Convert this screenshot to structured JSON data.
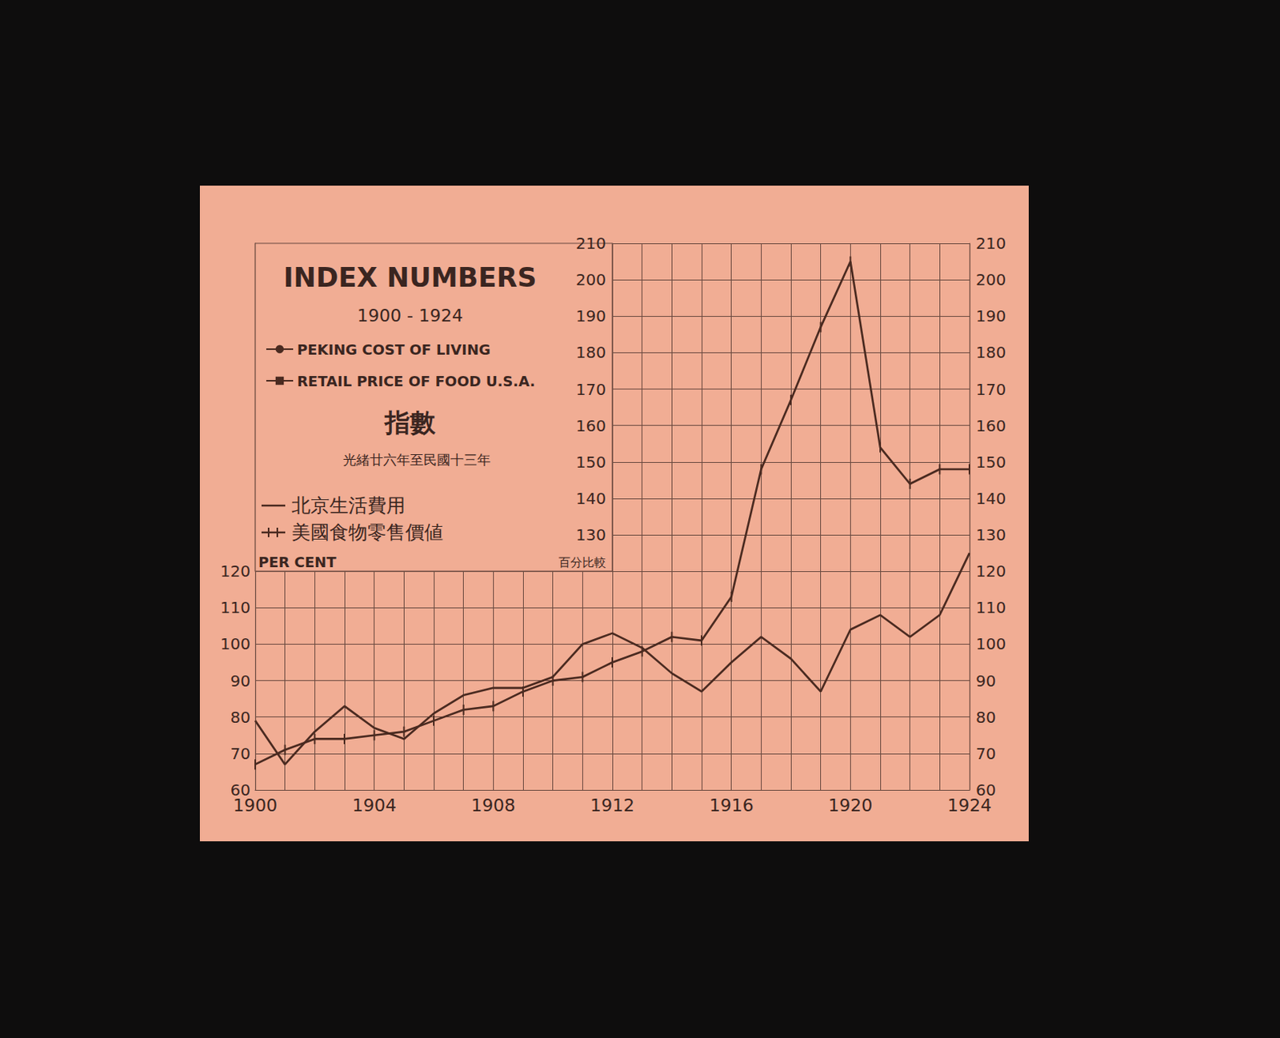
{
  "chart_data": {
    "type": "line",
    "title": "INDEX NUMBERS",
    "subtitle": "1900 - 1924",
    "title_zh": "指數",
    "subtitle_zh": "光緒廿六年至民國十三年",
    "ylabel": "PER CENT",
    "ylabel_zh": "百分比較",
    "x": [
      1900,
      1901,
      1902,
      1903,
      1904,
      1905,
      1906,
      1907,
      1908,
      1909,
      1910,
      1911,
      1912,
      1913,
      1914,
      1915,
      1916,
      1917,
      1918,
      1919,
      1920,
      1921,
      1922,
      1923,
      1924
    ],
    "series": [
      {
        "name": "PEKING COST OF LIVING",
        "name_zh": "北京生活費用",
        "color": "#4a2a20",
        "marker": "none",
        "line_style": "solid",
        "values": [
          79,
          67,
          76,
          83,
          77,
          74,
          81,
          86,
          88,
          88,
          91,
          100,
          103,
          99,
          92,
          87,
          95,
          102,
          96,
          87,
          104,
          108,
          102,
          108,
          125
        ]
      },
      {
        "name": "RETAIL PRICE OF FOOD U.S.A.",
        "name_zh": "美國食物零售價値",
        "color": "#4a2a20",
        "marker": "tick",
        "line_style": "solid",
        "values": [
          67,
          71,
          74,
          74,
          75,
          76,
          79,
          82,
          83,
          87,
          90,
          91,
          95,
          98,
          102,
          101,
          113,
          148,
          167,
          187,
          205,
          154,
          144,
          148,
          148
        ]
      }
    ],
    "xlim": [
      1900,
      1924
    ],
    "xticks": [
      1900,
      1904,
      1908,
      1912,
      1916,
      1920,
      1924
    ],
    "ylim": [
      60,
      210
    ],
    "yticks": [
      60,
      70,
      80,
      90,
      100,
      110,
      120,
      130,
      140,
      150,
      160,
      170,
      180,
      190,
      200,
      210
    ],
    "y2lim": [
      60,
      210
    ],
    "y2ticks": [
      60,
      70,
      80,
      90,
      100,
      110,
      120,
      130,
      140,
      150,
      160,
      170,
      180,
      190,
      200,
      210
    ],
    "grid": true,
    "legend": "upper left"
  }
}
